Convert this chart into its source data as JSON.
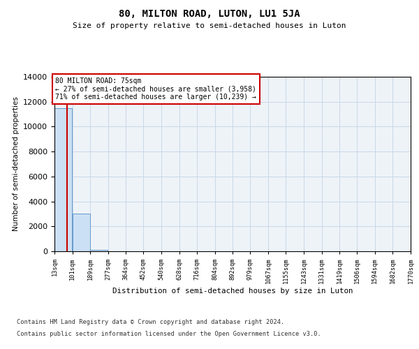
{
  "title": "80, MILTON ROAD, LUTON, LU1 5JA",
  "subtitle": "Size of property relative to semi-detached houses in Luton",
  "xlabel": "Distribution of semi-detached houses by size in Luton",
  "ylabel": "Number of semi-detached properties",
  "bin_edges": [
    13,
    101,
    189,
    277,
    364,
    452,
    540,
    628,
    716,
    804,
    892,
    979,
    1067,
    1155,
    1243,
    1331,
    1419,
    1506,
    1594,
    1682,
    1770
  ],
  "bar_heights": [
    11500,
    3000,
    120,
    20,
    5,
    2,
    1,
    1,
    0,
    0,
    0,
    0,
    0,
    0,
    0,
    0,
    0,
    0,
    0,
    0
  ],
  "bar_color": "#cce0f5",
  "bar_edgecolor": "#6699cc",
  "ylim": [
    0,
    14000
  ],
  "property_size": 75,
  "property_label": "80 MILTON ROAD: 75sqm",
  "pct_smaller": 27,
  "count_smaller": 3958,
  "pct_larger": 71,
  "count_larger": 10239,
  "vline_color": "#cc0000",
  "annotation_box_color": "#cc0000",
  "grid_color": "#c8d8e8",
  "background_color": "#eef3f8",
  "footer_line1": "Contains HM Land Registry data © Crown copyright and database right 2024.",
  "footer_line2": "Contains public sector information licensed under the Open Government Licence v3.0.",
  "tick_labels": [
    "13sqm",
    "101sqm",
    "189sqm",
    "277sqm",
    "364sqm",
    "452sqm",
    "540sqm",
    "628sqm",
    "716sqm",
    "804sqm",
    "892sqm",
    "979sqm",
    "1067sqm",
    "1155sqm",
    "1243sqm",
    "1331sqm",
    "1419sqm",
    "1506sqm",
    "1594sqm",
    "1682sqm",
    "1770sqm"
  ],
  "yticks": [
    0,
    2000,
    4000,
    6000,
    8000,
    10000,
    12000,
    14000
  ]
}
